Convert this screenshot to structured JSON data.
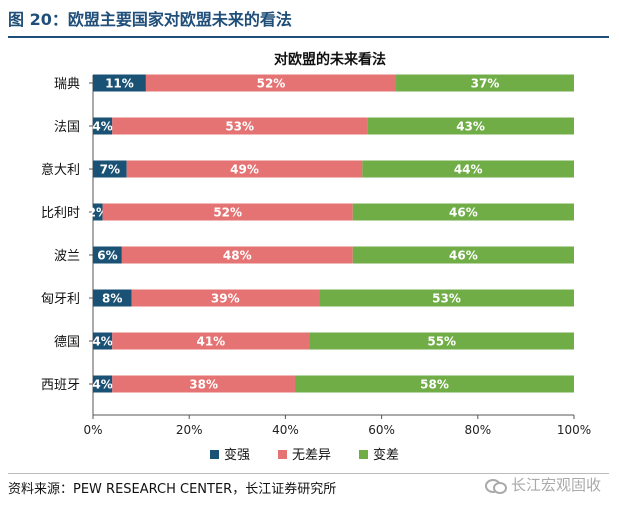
{
  "figure": {
    "title": "图 20：欧盟主要国家对欧盟未来的看法",
    "source": "资料来源：PEW RESEARCH CENTER，长江证券研究所",
    "watermark": "长江宏观固收"
  },
  "chart_data": {
    "type": "bar",
    "orientation": "horizontal",
    "stacked": true,
    "title": "对欧盟的未来看法",
    "categories": [
      "瑞典",
      "法国",
      "意大利",
      "比利时",
      "波兰",
      "匈牙利",
      "德国",
      "西班牙"
    ],
    "series": [
      {
        "name": "变强",
        "color": "#1a5276",
        "values": [
          11,
          4,
          7,
          2,
          6,
          8,
          4,
          4
        ]
      },
      {
        "name": "无差异",
        "color": "#e57373",
        "values": [
          52,
          53,
          49,
          52,
          48,
          39,
          41,
          38
        ]
      },
      {
        "name": "变差",
        "color": "#70ad47",
        "values": [
          37,
          43,
          44,
          46,
          46,
          53,
          55,
          58
        ]
      }
    ],
    "xlim": [
      0,
      100
    ],
    "xticks": [
      "0%",
      "20%",
      "40%",
      "60%",
      "80%",
      "100%"
    ],
    "value_suffix": "%",
    "legend_position": "bottom",
    "grid": false
  }
}
